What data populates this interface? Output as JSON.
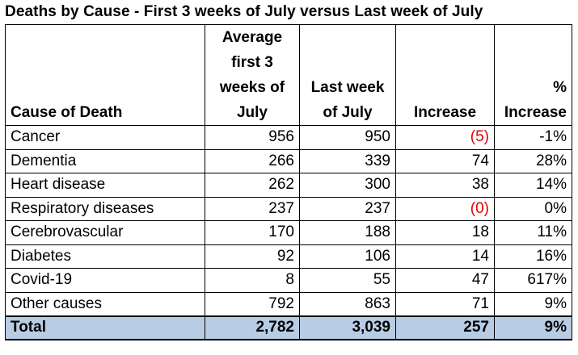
{
  "title": "Deaths by Cause - First 3 weeks of July versus Last week of July",
  "headers": {
    "cause": "Cause of Death",
    "avg_lines": [
      "Average",
      "first 3",
      "weeks of",
      "July"
    ],
    "last_lines": [
      "Last week",
      "of July"
    ],
    "increase": "Increase",
    "pct_lines": [
      "%",
      "Increase"
    ]
  },
  "rows": [
    {
      "cause": "Cancer",
      "avg": "956",
      "last": "950",
      "increase": "(5)",
      "pct": "-1%",
      "negative": true
    },
    {
      "cause": "Dementia",
      "avg": "266",
      "last": "339",
      "increase": "74",
      "pct": "28%",
      "negative": false
    },
    {
      "cause": "Heart disease",
      "avg": "262",
      "last": "300",
      "increase": "38",
      "pct": "14%",
      "negative": false
    },
    {
      "cause": "Respiratory diseases",
      "avg": "237",
      "last": "237",
      "increase": "(0)",
      "pct": "0%",
      "negative": true
    },
    {
      "cause": "Cerebrovascular",
      "avg": "170",
      "last": "188",
      "increase": "18",
      "pct": "11%",
      "negative": false
    },
    {
      "cause": "Diabetes",
      "avg": "92",
      "last": "106",
      "increase": "14",
      "pct": "16%",
      "negative": false
    },
    {
      "cause": "Covid-19",
      "avg": "8",
      "last": "55",
      "increase": "47",
      "pct": "617%",
      "negative": false
    },
    {
      "cause": "Other causes",
      "avg": "792",
      "last": "863",
      "increase": "71",
      "pct": "9%",
      "negative": false
    }
  ],
  "total": {
    "label": "Total",
    "avg": "2,782",
    "last": "3,039",
    "increase": "257",
    "pct": "9%"
  },
  "colors": {
    "total_fill": "#b8cce4",
    "negative_text": "#e00000"
  }
}
